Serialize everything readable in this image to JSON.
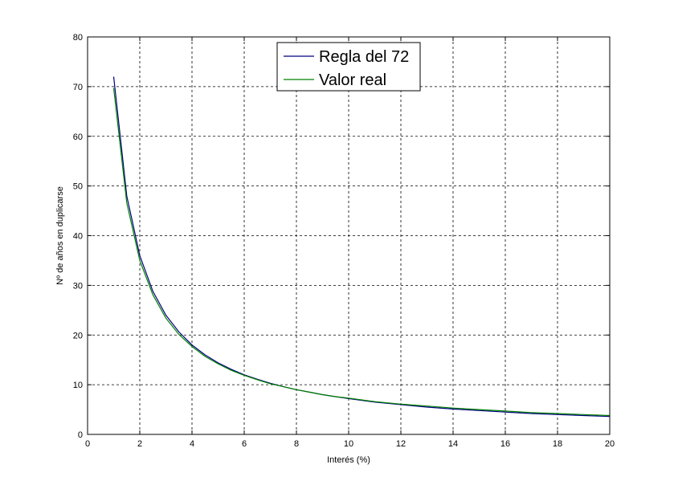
{
  "chart_data": {
    "type": "line",
    "title": "",
    "xlabel": "Interés (%)",
    "ylabel": "Nº de años en duplicarse",
    "xlim": [
      0,
      20
    ],
    "ylim": [
      0,
      80
    ],
    "xticks": [
      0,
      2,
      4,
      6,
      8,
      10,
      12,
      14,
      16,
      18,
      20
    ],
    "yticks": [
      0,
      10,
      20,
      30,
      40,
      50,
      60,
      70,
      80
    ],
    "grid": true,
    "legend_position": "top-center",
    "series": [
      {
        "name": "Regla del 72",
        "color": "#00007f",
        "x": [
          1,
          1.5,
          2,
          2.5,
          3,
          3.5,
          4,
          4.5,
          5,
          5.5,
          6,
          6.5,
          7,
          7.5,
          8,
          8.5,
          9,
          9.5,
          10,
          11,
          12,
          13,
          14,
          15,
          16,
          17,
          18,
          19,
          20
        ],
        "y": [
          72,
          48,
          36,
          28.8,
          24,
          20.6,
          18,
          16,
          14.4,
          13.1,
          12,
          11.1,
          10.3,
          9.6,
          9,
          8.5,
          8,
          7.6,
          7.2,
          6.5,
          6,
          5.5,
          5.1,
          4.8,
          4.5,
          4.2,
          4,
          3.8,
          3.6
        ]
      },
      {
        "name": "Valor real",
        "color": "#007f00",
        "x": [
          1,
          1.5,
          2,
          2.5,
          3,
          3.5,
          4,
          4.5,
          5,
          5.5,
          6,
          6.5,
          7,
          7.5,
          8,
          8.5,
          9,
          9.5,
          10,
          11,
          12,
          13,
          14,
          15,
          16,
          17,
          18,
          19,
          20
        ],
        "y": [
          69.7,
          46.6,
          35,
          28.1,
          23.4,
          20.1,
          17.7,
          15.7,
          14.2,
          12.9,
          11.9,
          11,
          10.2,
          9.6,
          9,
          8.5,
          8,
          7.6,
          7.3,
          6.6,
          6.1,
          5.7,
          5.3,
          5,
          4.7,
          4.4,
          4.2,
          4,
          3.8
        ]
      }
    ]
  }
}
